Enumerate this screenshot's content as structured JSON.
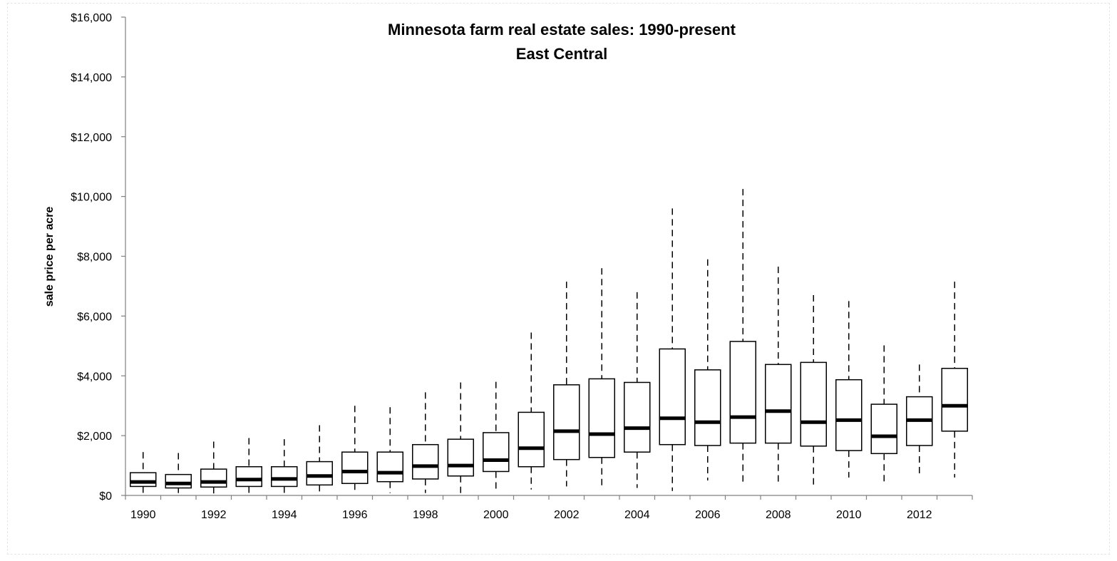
{
  "chart_data": {
    "type": "box",
    "title": "Minnesota farm real estate sales: 1990-present",
    "subtitle": "East Central",
    "xlabel": "",
    "ylabel": "sale price per acre",
    "ylim": [
      0,
      16000
    ],
    "y_ticks": [
      "$0",
      "$2,000",
      "$4,000",
      "$6,000",
      "$8,000",
      "$10,000",
      "$12,000",
      "$14,000",
      "$16,000"
    ],
    "x_tick_labels": [
      "1990",
      "1992",
      "1994",
      "1996",
      "1998",
      "2000",
      "2002",
      "2004",
      "2006",
      "2008",
      "2010",
      "2012"
    ],
    "grid": false,
    "legend": "none",
    "boxes": [
      {
        "year": 1990,
        "whisker_low": 80,
        "q1": 300,
        "median": 450,
        "q3": 760,
        "whisker_high": 1450
      },
      {
        "year": 1991,
        "whisker_low": 80,
        "q1": 250,
        "median": 400,
        "q3": 700,
        "whisker_high": 1420
      },
      {
        "year": 1992,
        "whisker_low": 60,
        "q1": 280,
        "median": 450,
        "q3": 880,
        "whisker_high": 1800
      },
      {
        "year": 1993,
        "whisker_low": 70,
        "q1": 300,
        "median": 530,
        "q3": 960,
        "whisker_high": 1920
      },
      {
        "year": 1994,
        "whisker_low": 60,
        "q1": 300,
        "median": 550,
        "q3": 960,
        "whisker_high": 1880
      },
      {
        "year": 1995,
        "whisker_low": 50,
        "q1": 350,
        "median": 650,
        "q3": 1130,
        "whisker_high": 2350
      },
      {
        "year": 1996,
        "whisker_low": 80,
        "q1": 400,
        "median": 800,
        "q3": 1450,
        "whisker_high": 3000
      },
      {
        "year": 1997,
        "whisker_low": 80,
        "q1": 460,
        "median": 760,
        "q3": 1450,
        "whisker_high": 2950
      },
      {
        "year": 1998,
        "whisker_low": 80,
        "q1": 550,
        "median": 980,
        "q3": 1700,
        "whisker_high": 3450
      },
      {
        "year": 1999,
        "whisker_low": 80,
        "q1": 650,
        "median": 1000,
        "q3": 1880,
        "whisker_high": 3780
      },
      {
        "year": 2000,
        "whisker_low": 200,
        "q1": 800,
        "median": 1180,
        "q3": 2100,
        "whisker_high": 3800
      },
      {
        "year": 2001,
        "whisker_low": 200,
        "q1": 960,
        "median": 1580,
        "q3": 2780,
        "whisker_high": 5450
      },
      {
        "year": 2002,
        "whisker_low": 300,
        "q1": 1200,
        "median": 2150,
        "q3": 3700,
        "whisker_high": 7150
      },
      {
        "year": 2003,
        "whisker_low": 200,
        "q1": 1270,
        "median": 2050,
        "q3": 3900,
        "whisker_high": 7600
      },
      {
        "year": 2004,
        "whisker_low": 250,
        "q1": 1450,
        "median": 2250,
        "q3": 3780,
        "whisker_high": 6800
      },
      {
        "year": 2005,
        "whisker_low": 150,
        "q1": 1700,
        "median": 2580,
        "q3": 4900,
        "whisker_high": 9600
      },
      {
        "year": 2006,
        "whisker_low": 500,
        "q1": 1670,
        "median": 2450,
        "q3": 4200,
        "whisker_high": 7900
      },
      {
        "year": 2007,
        "whisker_low": 400,
        "q1": 1750,
        "median": 2620,
        "q3": 5150,
        "whisker_high": 10250
      },
      {
        "year": 2008,
        "whisker_low": 450,
        "q1": 1750,
        "median": 2820,
        "q3": 4380,
        "whisker_high": 7650
      },
      {
        "year": 2009,
        "whisker_low": 300,
        "q1": 1650,
        "median": 2450,
        "q3": 4450,
        "whisker_high": 6700
      },
      {
        "year": 2010,
        "whisker_low": 600,
        "q1": 1500,
        "median": 2520,
        "q3": 3870,
        "whisker_high": 6500
      },
      {
        "year": 2011,
        "whisker_low": 400,
        "q1": 1400,
        "median": 1980,
        "q3": 3050,
        "whisker_high": 5020
      },
      {
        "year": 2012,
        "whisker_low": 700,
        "q1": 1670,
        "median": 2520,
        "q3": 3300,
        "whisker_high": 4380
      },
      {
        "year": 2013,
        "whisker_low": 600,
        "q1": 2150,
        "median": 3000,
        "q3": 4250,
        "whisker_high": 7150
      }
    ]
  }
}
